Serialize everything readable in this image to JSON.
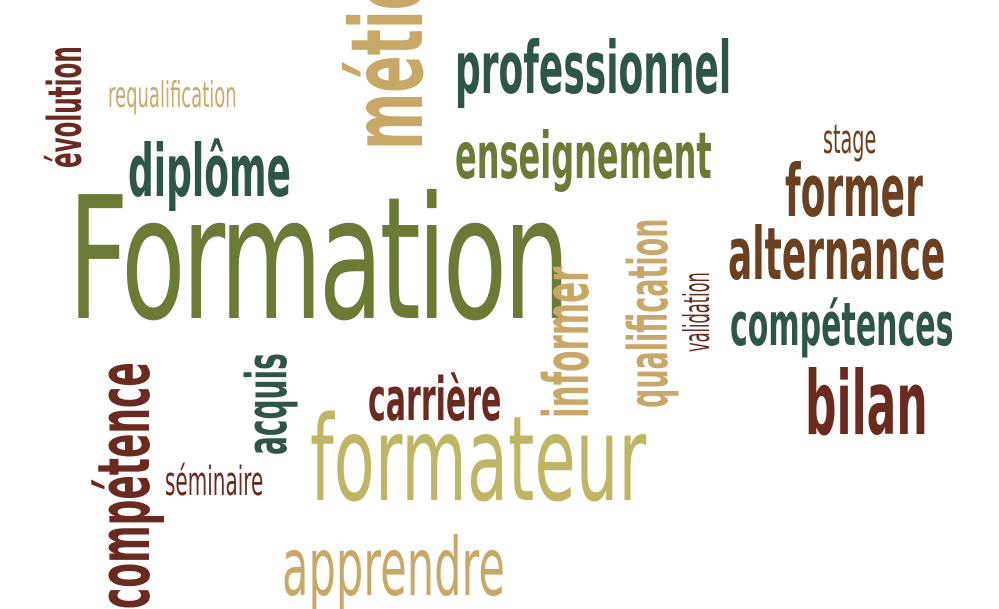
{
  "words": {
    "formation": "Formation",
    "metier": "métier",
    "professionnel": "professionnel",
    "enseignement": "enseignement",
    "diplome": "diplôme",
    "requalification": "requalification",
    "evolution": "évolution",
    "stage": "stage",
    "former": "former",
    "alternance": "alternance",
    "competences": "compétences",
    "bilan": "bilan",
    "validation": "validation",
    "qualification": "qualification",
    "informer": "informer",
    "carriere": "carrière",
    "formateur": "formateur",
    "acquis": "acquis",
    "seminaire": "séminaire",
    "competence": "compétence",
    "apprendre": "apprendre"
  },
  "colors": {
    "olive": "#6b7a35",
    "dark_green": "#2e5548",
    "dark_red": "#6b2a20",
    "brown": "#6b4020",
    "gold": "#c8a867",
    "tan": "#c9aa6a",
    "khaki": "#c0b565",
    "sage": "#6e7f39"
  }
}
